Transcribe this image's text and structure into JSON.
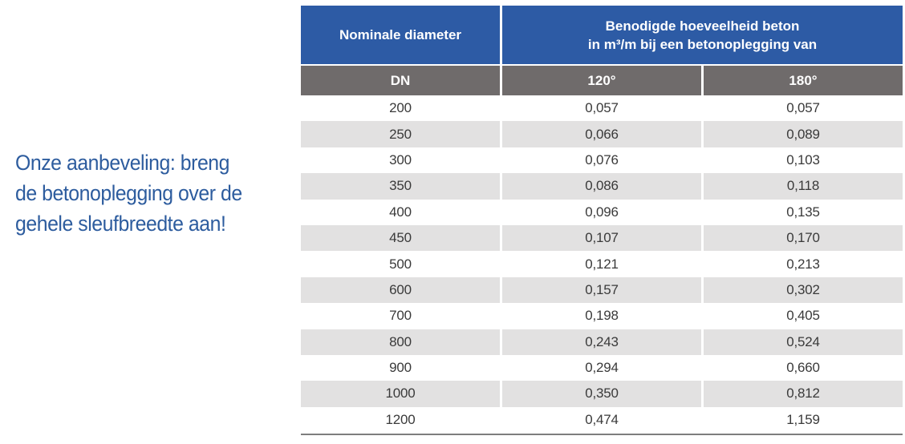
{
  "annotation": {
    "lines": [
      "Onze aanbeveling: breng",
      "de betonoplegging over de",
      "gehele sleufbreedte aan!"
    ]
  },
  "table": {
    "header": {
      "col1": "Nominale diameter",
      "col2_line1": "Benodigde hoeveelheid beton",
      "col2_line2": "in m³/m bij een betonoplegging van"
    },
    "subheader": {
      "dn": "DN",
      "deg120": "120°",
      "deg180": "180°"
    },
    "rows": [
      {
        "dn": "200",
        "v120": "0,057",
        "v180": "0,057"
      },
      {
        "dn": "250",
        "v120": "0,066",
        "v180": "0,089"
      },
      {
        "dn": "300",
        "v120": "0,076",
        "v180": "0,103"
      },
      {
        "dn": "350",
        "v120": "0,086",
        "v180": "0,118"
      },
      {
        "dn": "400",
        "v120": "0,096",
        "v180": "0,135"
      },
      {
        "dn": "450",
        "v120": "0,107",
        "v180": "0,170"
      },
      {
        "dn": "500",
        "v120": "0,121",
        "v180": "0,213"
      },
      {
        "dn": "600",
        "v120": "0,157",
        "v180": "0,302"
      },
      {
        "dn": "700",
        "v120": "0,198",
        "v180": "0,405"
      },
      {
        "dn": "800",
        "v120": "0,243",
        "v180": "0,524"
      },
      {
        "dn": "900",
        "v120": "0,294",
        "v180": "0,660"
      },
      {
        "dn": "1000",
        "v120": "0,350",
        "v180": "0,812"
      },
      {
        "dn": "1200",
        "v120": "0,474",
        "v180": "1,159"
      }
    ]
  },
  "colors": {
    "header_blue": "#2d5ba5",
    "subheader_gray": "#6f6b6b",
    "row_alt_gray": "#e2e1e1",
    "cell_text": "#3a3a3a",
    "annotation_blue": "#2d5c9e",
    "bottom_border": "#7e7e7e"
  }
}
